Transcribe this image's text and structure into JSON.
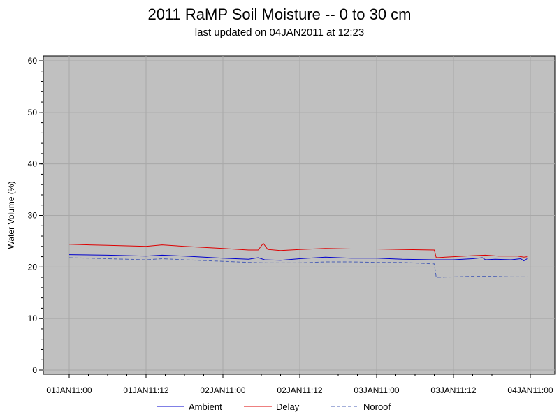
{
  "chart_data": {
    "type": "line",
    "title": "2011 RaMP Soil Moisture -- 0 to 30 cm",
    "subtitle": "last updated on 04JAN2011 at 12:23",
    "xlabel": "",
    "ylabel": "Water Volume (%)",
    "xlim": [
      0,
      72
    ],
    "ylim": [
      0,
      60
    ],
    "x_ticks": [
      {
        "value": 0,
        "label": "01JAN11:00"
      },
      {
        "value": 12,
        "label": "01JAN11:12"
      },
      {
        "value": 24,
        "label": "02JAN11:00"
      },
      {
        "value": 36,
        "label": "02JAN11:12"
      },
      {
        "value": 48,
        "label": "03JAN11:00"
      },
      {
        "value": 60,
        "label": "03JAN11:12"
      },
      {
        "value": 72,
        "label": "04JAN11:00"
      }
    ],
    "y_ticks": [
      0,
      10,
      20,
      30,
      40,
      50,
      60
    ],
    "grid": true,
    "legend_position": "bottom",
    "series": [
      {
        "name": "Ambient",
        "color": "#0000cc",
        "dash": "solid",
        "points": [
          [
            0,
            22.4
          ],
          [
            6,
            22.3
          ],
          [
            12,
            22.1
          ],
          [
            14.5,
            22.3
          ],
          [
            18,
            22.1
          ],
          [
            24,
            21.7
          ],
          [
            28,
            21.5
          ],
          [
            29.5,
            21.8
          ],
          [
            30.5,
            21.4
          ],
          [
            33,
            21.3
          ],
          [
            36,
            21.6
          ],
          [
            40,
            21.9
          ],
          [
            44,
            21.7
          ],
          [
            48,
            21.7
          ],
          [
            52,
            21.5
          ],
          [
            57,
            21.4
          ],
          [
            60,
            21.4
          ],
          [
            63,
            21.6
          ],
          [
            64.5,
            21.8
          ],
          [
            65,
            21.4
          ],
          [
            66.5,
            21.5
          ],
          [
            69,
            21.4
          ],
          [
            70.5,
            21.6
          ],
          [
            71,
            21.2
          ],
          [
            71.5,
            21.6
          ]
        ]
      },
      {
        "name": "Delay",
        "color": "#dd0000",
        "dash": "solid",
        "points": [
          [
            0,
            24.4
          ],
          [
            6,
            24.2
          ],
          [
            12,
            24.0
          ],
          [
            14.5,
            24.3
          ],
          [
            18,
            24.0
          ],
          [
            24,
            23.6
          ],
          [
            28,
            23.3
          ],
          [
            29.5,
            23.3
          ],
          [
            30.3,
            24.6
          ],
          [
            31,
            23.4
          ],
          [
            33,
            23.2
          ],
          [
            36,
            23.4
          ],
          [
            40,
            23.6
          ],
          [
            44,
            23.5
          ],
          [
            48,
            23.5
          ],
          [
            52,
            23.4
          ],
          [
            57,
            23.3
          ],
          [
            57.3,
            21.8
          ],
          [
            60,
            22.0
          ],
          [
            63,
            22.2
          ],
          [
            65,
            22.3
          ],
          [
            67,
            22.1
          ],
          [
            70,
            22.1
          ],
          [
            71,
            21.9
          ],
          [
            71.5,
            22.0
          ]
        ]
      },
      {
        "name": "Noroof",
        "color": "#4a5fb5",
        "dash": "dashed",
        "points": [
          [
            0,
            21.8
          ],
          [
            6,
            21.6
          ],
          [
            12,
            21.4
          ],
          [
            14.5,
            21.6
          ],
          [
            18,
            21.4
          ],
          [
            24,
            21.1
          ],
          [
            28,
            20.9
          ],
          [
            31,
            20.8
          ],
          [
            36,
            20.8
          ],
          [
            40,
            21.0
          ],
          [
            44,
            21.0
          ],
          [
            48,
            20.9
          ],
          [
            52,
            20.9
          ],
          [
            57,
            20.6
          ],
          [
            57.3,
            18.0
          ],
          [
            60,
            18.1
          ],
          [
            63,
            18.2
          ],
          [
            66,
            18.2
          ],
          [
            69,
            18.1
          ],
          [
            71.5,
            18.1
          ]
        ]
      }
    ]
  }
}
